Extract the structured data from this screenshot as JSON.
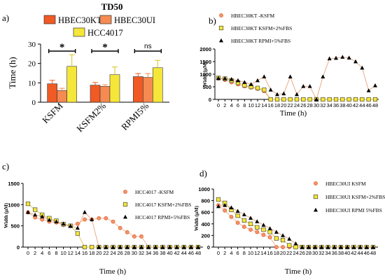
{
  "figure_title": "TD50",
  "colors": {
    "kt": "#f05a24",
    "ui": "#f58a52",
    "hcc": "#f5e63a",
    "line_orange": "#f0a37a",
    "line_black": "#000000"
  },
  "chart_data": [
    {
      "id": "a",
      "panel_label": "a)",
      "type": "bar",
      "title": "TD50",
      "ylabel": "Time (h)",
      "ylim": [
        0,
        30
      ],
      "yticks": [
        "0",
        "10",
        "20",
        "30"
      ],
      "categories": [
        "KSFM",
        "KSFM2%",
        "RPMI5%"
      ],
      "legend_position": "top",
      "series": [
        {
          "name": "HBEC30KT",
          "color": "#f05a24",
          "values": [
            9.5,
            8.8,
            13.2
          ],
          "errors": [
            1.8,
            1.4,
            1.6
          ]
        },
        {
          "name": "HBEC30UI",
          "color": "#f58a52",
          "values": [
            6.0,
            8.2,
            12.8
          ],
          "errors": [
            1.2,
            0.8,
            2.0
          ]
        },
        {
          "name": "HCC4017",
          "color": "#f5e63a",
          "values": [
            18.5,
            14.2,
            17.8
          ],
          "errors": [
            6.0,
            4.0,
            3.8
          ]
        }
      ],
      "significance": [
        "*",
        "*",
        "ns"
      ]
    },
    {
      "id": "b",
      "panel_label": "b)",
      "type": "line",
      "xlabel": "Time (h)",
      "ylabel": "Width (µM)",
      "ylim": [
        0,
        2000
      ],
      "yticks": [
        "0",
        "500",
        "1000",
        "1500",
        "2000"
      ],
      "x": [
        0,
        2,
        4,
        6,
        8,
        10,
        12,
        14,
        16,
        18,
        20,
        22,
        24,
        26,
        28,
        30,
        32,
        34,
        36,
        38,
        40,
        42,
        44,
        46,
        48
      ],
      "xticks": [
        "0",
        "2",
        "4",
        "6",
        "8",
        "10",
        "12",
        "14",
        "16",
        "18",
        "20",
        "22",
        "24",
        "26",
        "28",
        "30",
        "32",
        "34",
        "36",
        "38",
        "40",
        "42",
        "44",
        "46",
        "48"
      ],
      "legend_position": "top-right",
      "series": [
        {
          "name": "HBEC30KT -KSFM",
          "marker": "circle",
          "color": "#f05a24",
          "values": [
            830,
            780,
            680,
            600,
            520,
            470,
            420,
            330,
            0,
            0,
            0,
            0,
            0,
            0,
            0,
            0,
            0,
            0,
            0,
            0,
            0,
            0,
            0,
            0,
            0
          ]
        },
        {
          "name": "HBEC30KT  KSFM+2%FBS",
          "marker": "square",
          "color": "#f5e63a",
          "values": [
            850,
            820,
            750,
            660,
            560,
            500,
            450,
            380,
            0,
            0,
            0,
            0,
            0,
            0,
            0,
            0,
            0,
            0,
            0,
            0,
            0,
            0,
            0,
            0,
            0
          ]
        },
        {
          "name": "HBEC30KT RPMI+5%FBS",
          "marker": "triangle",
          "color": "#000000",
          "values": [
            840,
            830,
            800,
            750,
            680,
            600,
            750,
            900,
            380,
            200,
            230,
            900,
            200,
            520,
            520,
            0,
            900,
            1620,
            1640,
            1680,
            1650,
            1500,
            1250,
            350,
            550
          ]
        }
      ]
    },
    {
      "id": "c",
      "panel_label": "c)",
      "type": "line",
      "xlabel": "Time (h)",
      "ylabel": "Width (µM)",
      "ylim": [
        0,
        1500
      ],
      "yticks": [
        "0",
        "500",
        "1000",
        "1500"
      ],
      "x": [
        0,
        2,
        4,
        6,
        8,
        10,
        12,
        14,
        16,
        18,
        20,
        22,
        24,
        26,
        28,
        30,
        32,
        34,
        36,
        38,
        40,
        42,
        44,
        46,
        48
      ],
      "xticks": [
        "0",
        "2",
        "4",
        "6",
        "8",
        "10",
        "12",
        "14",
        "16",
        "18",
        "20",
        "22",
        "24",
        "26",
        "28",
        "30",
        "32",
        "34",
        "36",
        "38",
        "40",
        "42",
        "44",
        "46",
        "48"
      ],
      "legend_position": "top-right",
      "series": [
        {
          "name": "HCC4017 -KSFM",
          "marker": "circle",
          "color": "#f05a24",
          "values": [
            820,
            700,
            650,
            600,
            580,
            520,
            500,
            550,
            650,
            650,
            680,
            680,
            600,
            450,
            350,
            250,
            250,
            0,
            0,
            0,
            0,
            0,
            0,
            0,
            0
          ]
        },
        {
          "name": "HCC4017 KSFM+2%FBS",
          "marker": "square",
          "color": "#f5e63a",
          "values": [
            1020,
            880,
            760,
            680,
            620,
            540,
            500,
            320,
            0,
            0,
            0,
            0,
            0,
            0,
            0,
            0,
            0,
            0,
            0,
            0,
            0,
            0,
            0,
            0,
            0
          ]
        },
        {
          "name": "HCC4017 RPMI+5%FBS",
          "marker": "triangle",
          "color": "#000000",
          "values": [
            820,
            760,
            720,
            640,
            600,
            550,
            500,
            450,
            820,
            650,
            0,
            0,
            0,
            0,
            0,
            0,
            0,
            0,
            0,
            0,
            0,
            0,
            0,
            0,
            0
          ]
        }
      ]
    },
    {
      "id": "d",
      "panel_label": "d)",
      "type": "line",
      "xlabel": "Time (h)",
      "ylabel": "Width (µM)",
      "ylim": [
        0,
        1000
      ],
      "yticks": [
        "0",
        "200",
        "400",
        "600",
        "800",
        "1000"
      ],
      "x": [
        0,
        2,
        4,
        6,
        8,
        10,
        12,
        14,
        16,
        18,
        20,
        22,
        24,
        26,
        28,
        30,
        32,
        34,
        36,
        38,
        40,
        42,
        44,
        46,
        48
      ],
      "xticks": [
        "0",
        "2",
        "4",
        "6",
        "8",
        "10",
        "12",
        "14",
        "16",
        "18",
        "20",
        "22",
        "24",
        "26",
        "28",
        "30",
        "32",
        "34",
        "36",
        "38",
        "40",
        "42",
        "44",
        "46",
        "48"
      ],
      "legend_position": "top-right",
      "series": [
        {
          "name": "HBEC30UI KSFM",
          "marker": "circle",
          "color": "#f05a24",
          "values": [
            720,
            630,
            520,
            420,
            350,
            300,
            260,
            210,
            170,
            0,
            0,
            0,
            0,
            0,
            0,
            0,
            0,
            0,
            0,
            0,
            0,
            0,
            0,
            0,
            0
          ]
        },
        {
          "name": "HBEC30UI KSFM+2%FBS",
          "marker": "square",
          "color": "#f5e63a",
          "values": [
            820,
            760,
            640,
            540,
            460,
            400,
            340,
            300,
            260,
            150,
            120,
            30,
            0,
            0,
            0,
            0,
            0,
            0,
            0,
            0,
            0,
            0,
            0,
            0,
            0
          ]
        },
        {
          "name": "HBEC30UI RPMI 5%FBS",
          "marker": "triangle",
          "color": "#000000",
          "values": [
            700,
            720,
            680,
            620,
            560,
            500,
            440,
            380,
            320,
            260,
            200,
            140,
            60,
            0,
            0,
            0,
            0,
            0,
            0,
            0,
            0,
            0,
            0,
            0,
            0
          ]
        }
      ]
    }
  ]
}
